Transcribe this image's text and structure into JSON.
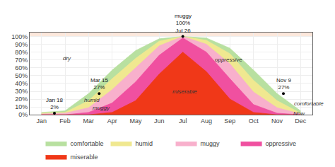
{
  "chart_data": {
    "type": "area",
    "categories": [
      "Jan",
      "Feb",
      "Mar",
      "Apr",
      "May",
      "Jun",
      "Jul",
      "Aug",
      "Sep",
      "Oct",
      "Nov",
      "Dec"
    ],
    "series": [
      {
        "name": "comfortable",
        "color": "#b8e0a0",
        "values": [
          3,
          5,
          27,
          57,
          82,
          97,
          100,
          98,
          85,
          57,
          27,
          5
        ]
      },
      {
        "name": "humid",
        "color": "#f0e890",
        "values": [
          2,
          3,
          18,
          46,
          72,
          94,
          100,
          95,
          78,
          44,
          18,
          2
        ]
      },
      {
        "name": "muggy",
        "color": "#f8b0cc",
        "values": [
          1,
          2,
          9,
          32,
          60,
          88,
          100,
          90,
          65,
          29,
          9,
          1
        ]
      },
      {
        "name": "oppressive",
        "color": "#f050a0",
        "values": [
          0,
          0,
          3,
          15,
          42,
          76,
          98,
          80,
          46,
          13,
          2,
          0
        ]
      },
      {
        "name": "miserable",
        "color": "#f03818",
        "values": [
          0,
          0,
          0,
          3,
          18,
          52,
          80,
          55,
          20,
          3,
          0,
          0
        ]
      }
    ],
    "xlim": [
      -0.5,
      11.5
    ],
    "ylim": [
      0,
      105
    ],
    "yticks": [
      {
        "value": 0,
        "label": "0%"
      },
      {
        "value": 10,
        "label": "10%"
      },
      {
        "value": 20,
        "label": "20%"
      },
      {
        "value": 30,
        "label": "30%"
      },
      {
        "value": 40,
        "label": "40%"
      },
      {
        "value": 50,
        "label": "50%"
      },
      {
        "value": 60,
        "label": "60%"
      },
      {
        "value": 70,
        "label": "70%"
      },
      {
        "value": 80,
        "label": "80%"
      },
      {
        "value": 90,
        "label": "90%"
      },
      {
        "value": 100,
        "label": "100%"
      }
    ],
    "grid": true,
    "legend": "bottom",
    "annotations": [
      {
        "x": 0.55,
        "y": 2,
        "text": "Jan 18\n2%",
        "marker": "circle"
      },
      {
        "x": 2.45,
        "y": 27,
        "text": "Mar 15\n27%",
        "marker": "circle"
      },
      {
        "x": 6.0,
        "y": 100,
        "text": "muggy\n100%\nJul 26",
        "marker": "circle"
      },
      {
        "x": 10.27,
        "y": 27,
        "text": "Nov 9\n27%",
        "marker": "circle"
      },
      {
        "x": 0.85,
        "y": 72,
        "text": "dry"
      },
      {
        "x": 1.75,
        "y": 19,
        "text": "humid"
      },
      {
        "x": 2.1,
        "y": 9,
        "text": "muggy"
      },
      {
        "x": 7.3,
        "y": 70,
        "text": "oppressive"
      },
      {
        "x": 5.5,
        "y": 30,
        "text": "miserable"
      },
      {
        "x": 10.65,
        "y": 14,
        "text": "comfortable"
      },
      {
        "x": 10.62,
        "y": 1.5,
        "text": "Now"
      }
    ]
  }
}
